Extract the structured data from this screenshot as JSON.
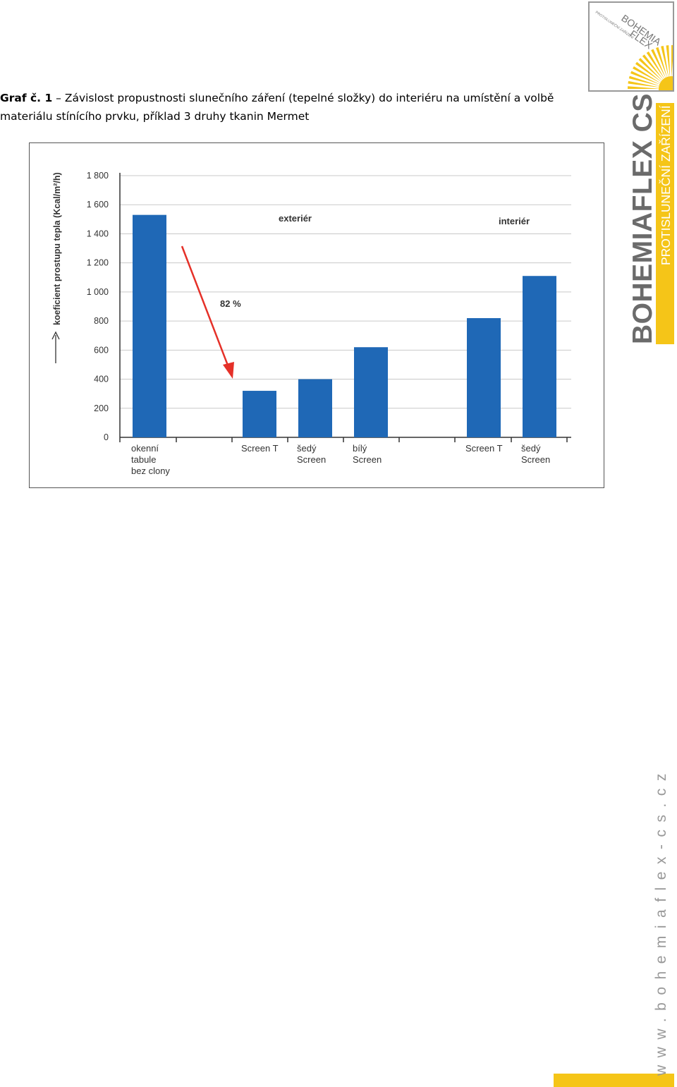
{
  "caption": {
    "label": "Graf č. 1",
    "text": " – Závislost propustnosti slunečního záření (tepelné složky) do interiéru na umístění a volbě materiálu stínícího prvku, příklad 3 druhy tkanin Mermet"
  },
  "branding": {
    "logo_text_1": "BOHEMIA",
    "logo_text_2": "FLEX",
    "logo_small": "PROTISLUNEČNÍ ZAŘÍZENÍ",
    "side_title": "BOHEMIAFLEX CS",
    "side_subtitle": "PROTISLUNEČNÍ ZAŘÍZENÍ",
    "website": "www.bohemiaflex-cs.cz",
    "accent_color": "#f5c518",
    "gray_color": "#6b6b6b"
  },
  "chart_data": {
    "type": "bar",
    "ylabel": "koeficient prostupu tepla (Kcal/m²/h)",
    "ylim": [
      0,
      1800
    ],
    "yticks": [
      0,
      200,
      400,
      600,
      800,
      1000,
      1200,
      1400,
      1600,
      1800
    ],
    "ytick_labels": [
      "0",
      "200",
      "400",
      "600",
      "800",
      "1 000",
      "1 200",
      "1 400",
      "1 600",
      "1 800"
    ],
    "grid": true,
    "bar_color": "#1f68b6",
    "categories": [
      [
        "okenní",
        "tabule",
        "bez clony"
      ],
      [
        "Screen T"
      ],
      [
        "šedý",
        "Screen"
      ],
      [
        "bílý",
        "Screen"
      ],
      [
        "Screen T"
      ],
      [
        "šedý",
        "Screen"
      ]
    ],
    "values": [
      1530,
      320,
      400,
      620,
      820,
      1110
    ],
    "groups": [
      "exteriér",
      "interiér"
    ],
    "annotation": "82 %",
    "arrow_color": "#e53028"
  }
}
